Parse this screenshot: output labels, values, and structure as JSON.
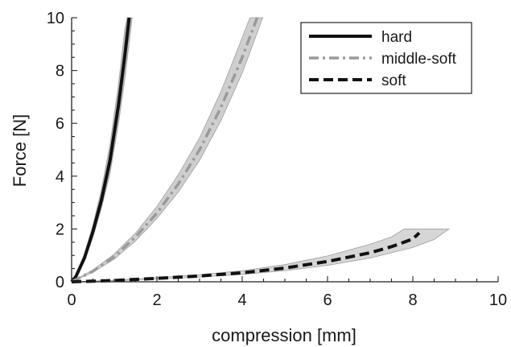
{
  "chart_data": {
    "type": "line",
    "title": "",
    "xlabel": "compression [mm]",
    "ylabel": "Force [N]",
    "xlim": [
      0,
      10
    ],
    "ylim": [
      0,
      10
    ],
    "xticks": [
      "0",
      "2",
      "4",
      "6",
      "8",
      "10"
    ],
    "yticks": [
      "0",
      "2",
      "4",
      "6",
      "8",
      "10"
    ],
    "grid": false,
    "legend_position": "top-right",
    "series": [
      {
        "name": "hard",
        "style": "solid",
        "color": "#111111",
        "band_color": "#bdbdbd",
        "points": [
          [
            0,
            0
          ],
          [
            0.1,
            0.2
          ],
          [
            0.3,
            0.9
          ],
          [
            0.5,
            1.9
          ],
          [
            0.7,
            3.1
          ],
          [
            0.9,
            4.6
          ],
          [
            1.1,
            6.7
          ],
          [
            1.25,
            8.6
          ],
          [
            1.35,
            10.0
          ]
        ],
        "band_upper": [
          [
            0,
            0
          ],
          [
            0.1,
            0.25
          ],
          [
            0.3,
            1.05
          ],
          [
            0.5,
            2.15
          ],
          [
            0.7,
            3.5
          ],
          [
            0.9,
            5.2
          ],
          [
            1.1,
            7.5
          ],
          [
            1.25,
            9.6
          ],
          [
            1.3,
            10.0
          ]
        ],
        "band_lower": [
          [
            0,
            0
          ],
          [
            0.1,
            0.17
          ],
          [
            0.3,
            0.78
          ],
          [
            0.5,
            1.7
          ],
          [
            0.7,
            2.8
          ],
          [
            0.9,
            4.1
          ],
          [
            1.1,
            6.0
          ],
          [
            1.25,
            7.7
          ],
          [
            1.42,
            10.0
          ]
        ]
      },
      {
        "name": "middle-soft",
        "style": "dashdot",
        "color": "#9a9a9a",
        "band_color": "#cfcfcf",
        "points": [
          [
            0,
            0
          ],
          [
            0.5,
            0.4
          ],
          [
            1.0,
            0.95
          ],
          [
            1.5,
            1.7
          ],
          [
            2.0,
            2.6
          ],
          [
            2.5,
            3.7
          ],
          [
            3.0,
            5.0
          ],
          [
            3.5,
            6.6
          ],
          [
            4.0,
            8.5
          ],
          [
            4.35,
            10.0
          ]
        ],
        "band_upper": [
          [
            0,
            0
          ],
          [
            0.5,
            0.45
          ],
          [
            1.0,
            1.05
          ],
          [
            1.5,
            1.85
          ],
          [
            2.0,
            2.85
          ],
          [
            2.5,
            4.05
          ],
          [
            3.0,
            5.45
          ],
          [
            3.5,
            7.2
          ],
          [
            4.0,
            9.25
          ],
          [
            4.18,
            10.0
          ]
        ],
        "band_lower": [
          [
            0,
            0
          ],
          [
            0.5,
            0.36
          ],
          [
            1.0,
            0.86
          ],
          [
            1.5,
            1.55
          ],
          [
            2.0,
            2.4
          ],
          [
            2.5,
            3.4
          ],
          [
            3.0,
            4.6
          ],
          [
            3.5,
            6.1
          ],
          [
            4.0,
            7.9
          ],
          [
            4.48,
            10.0
          ]
        ]
      },
      {
        "name": "soft",
        "style": "dashed",
        "color": "#111111",
        "band_color": "#d6d6d6",
        "points": [
          [
            0,
            0
          ],
          [
            1,
            0.05
          ],
          [
            2,
            0.13
          ],
          [
            3,
            0.22
          ],
          [
            4,
            0.34
          ],
          [
            5,
            0.52
          ],
          [
            6,
            0.77
          ],
          [
            7,
            1.1
          ],
          [
            7.5,
            1.33
          ],
          [
            8,
            1.62
          ],
          [
            8.15,
            1.85
          ]
        ],
        "band_upper": [
          [
            0,
            0
          ],
          [
            1,
            0.06
          ],
          [
            2,
            0.16
          ],
          [
            3,
            0.27
          ],
          [
            4,
            0.42
          ],
          [
            5,
            0.65
          ],
          [
            6,
            0.98
          ],
          [
            7,
            1.42
          ],
          [
            7.5,
            1.7
          ],
          [
            7.8,
            2.0
          ]
        ],
        "band_lower": [
          [
            0,
            0
          ],
          [
            1,
            0.04
          ],
          [
            2,
            0.1
          ],
          [
            3,
            0.18
          ],
          [
            4,
            0.28
          ],
          [
            5,
            0.42
          ],
          [
            6,
            0.62
          ],
          [
            7,
            0.9
          ],
          [
            8,
            1.3
          ],
          [
            8.5,
            1.6
          ],
          [
            8.85,
            2.0
          ]
        ]
      }
    ]
  }
}
